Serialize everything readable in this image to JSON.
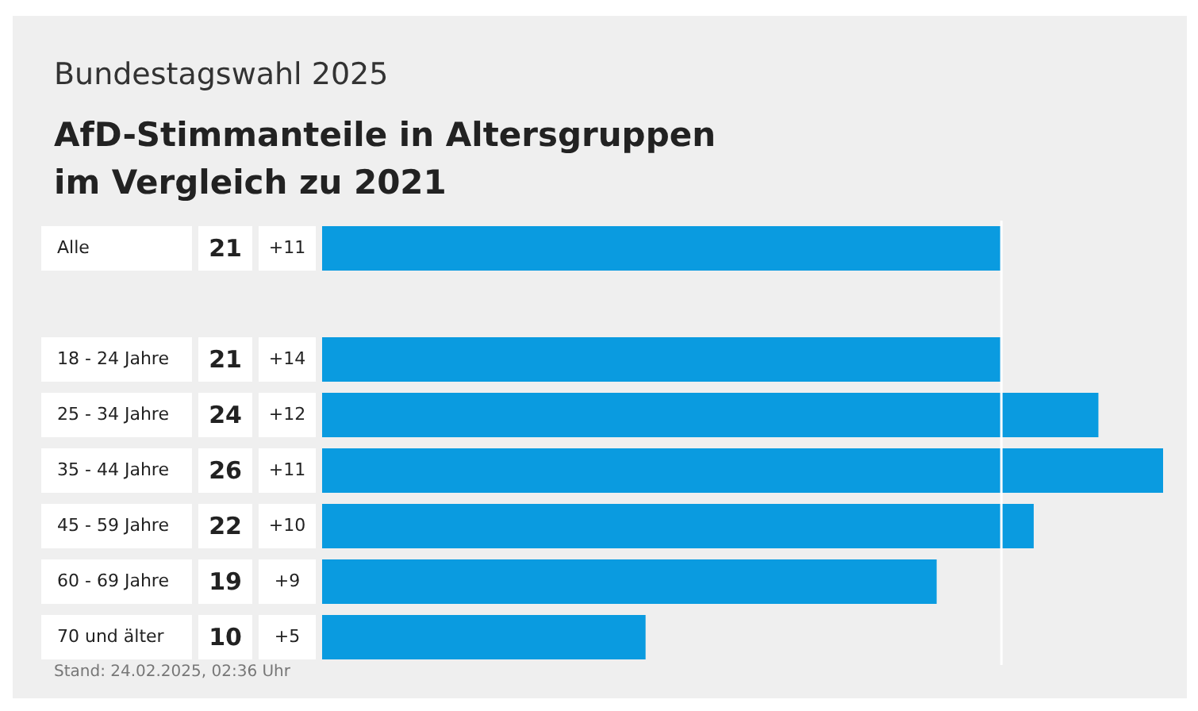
{
  "chart_data": {
    "type": "bar",
    "orientation": "horizontal",
    "subtitle": "Bundestagswahl 2025",
    "title": "AfD-Stimmanteile in Altersgruppen im Vergleich zu 2021",
    "categories": [
      "Alle",
      null,
      "18 - 24 Jahre",
      "25 - 34 Jahre",
      "35 - 44 Jahre",
      "45 - 59 Jahre",
      "60 - 69 Jahre",
      "70 und älter"
    ],
    "values": [
      21,
      null,
      21,
      24,
      26,
      22,
      19,
      10
    ],
    "color": "#0a9be0",
    "data_labels": true,
    "ref_lines": [
      {
        "axis": "x",
        "value": 21,
        "color": "#ffffff"
      }
    ],
    "annotations": [
      "+11",
      "+14",
      "+12",
      "+11",
      "+10",
      "+9",
      "+5",
      "Stand: 24.02.2025, 02:36 Uhr"
    ]
  }
}
